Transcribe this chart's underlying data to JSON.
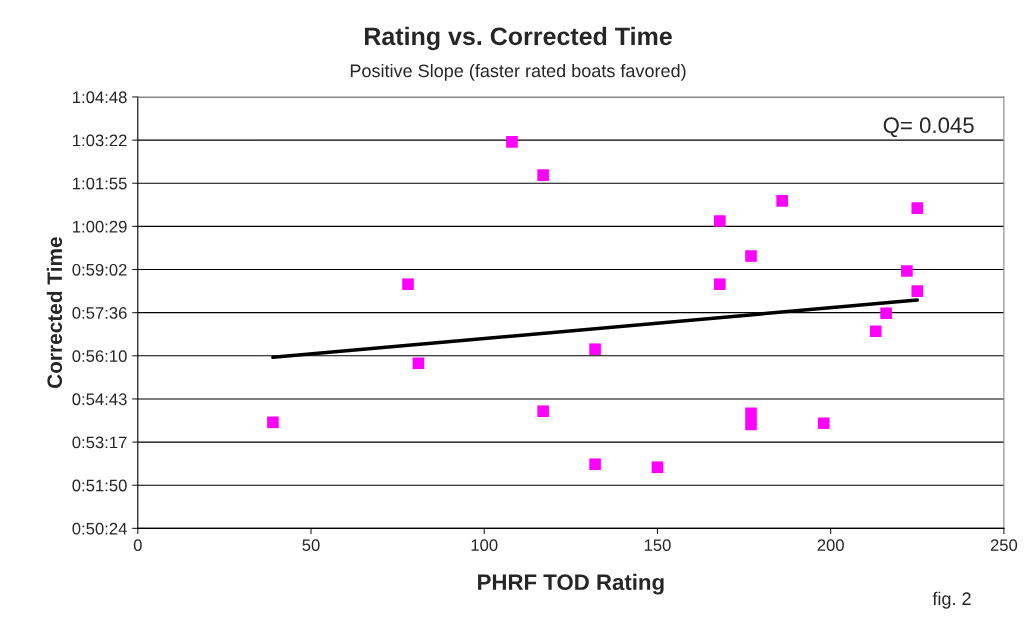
{
  "chart_data": {
    "type": "scatter",
    "title": "Rating vs. Corrected Time",
    "subtitle": "Positive Slope (faster rated boats favored)",
    "xlabel": "PHRF TOD Rating",
    "ylabel": "Corrected Time",
    "annotations": [
      "Q= 0.045",
      "fig. 2"
    ],
    "series": [
      {
        "color": "#ff00ff",
        "marker": "square",
        "x": [
          39,
          78,
          81,
          108,
          117,
          117,
          132,
          132,
          150,
          168,
          168,
          177,
          177,
          177,
          186,
          198,
          213,
          216,
          222,
          225,
          225
        ],
        "values": [
          53.94,
          58.55,
          55.91,
          63.3,
          62.19,
          54.31,
          56.38,
          52.54,
          52.44,
          60.66,
          58.55,
          59.49,
          54.24,
          53.87,
          61.33,
          53.91,
          56.98,
          57.58,
          58.99,
          61.09,
          58.32
        ]
      },
      {
        "type": "line",
        "color": "#000000",
        "marker": "none",
        "x": [
          39,
          225
        ],
        "values": [
          56.11,
          58.02
        ]
      }
    ],
    "xlim": [
      0,
      250
    ],
    "xticks": [
      0,
      50,
      100,
      150,
      200,
      250
    ],
    "ylim": [
      50.4,
      64.8
    ],
    "yticks": [
      {
        "value": 50.4,
        "label": "0:50:24"
      },
      {
        "value": 51.84,
        "label": "0:51:50"
      },
      {
        "value": 53.28,
        "label": "0:53:17"
      },
      {
        "value": 54.72,
        "label": "0:54:43"
      },
      {
        "value": 56.16,
        "label": "0:56:10"
      },
      {
        "value": 57.6,
        "label": "0:57:36"
      },
      {
        "value": 59.04,
        "label": "0:59:02"
      },
      {
        "value": 60.48,
        "label": "1:00:29"
      },
      {
        "value": 61.92,
        "label": "1:01:55"
      },
      {
        "value": 63.36,
        "label": "1:03:22"
      },
      {
        "value": 64.8,
        "label": "1:04:48"
      }
    ],
    "grid": "y"
  }
}
